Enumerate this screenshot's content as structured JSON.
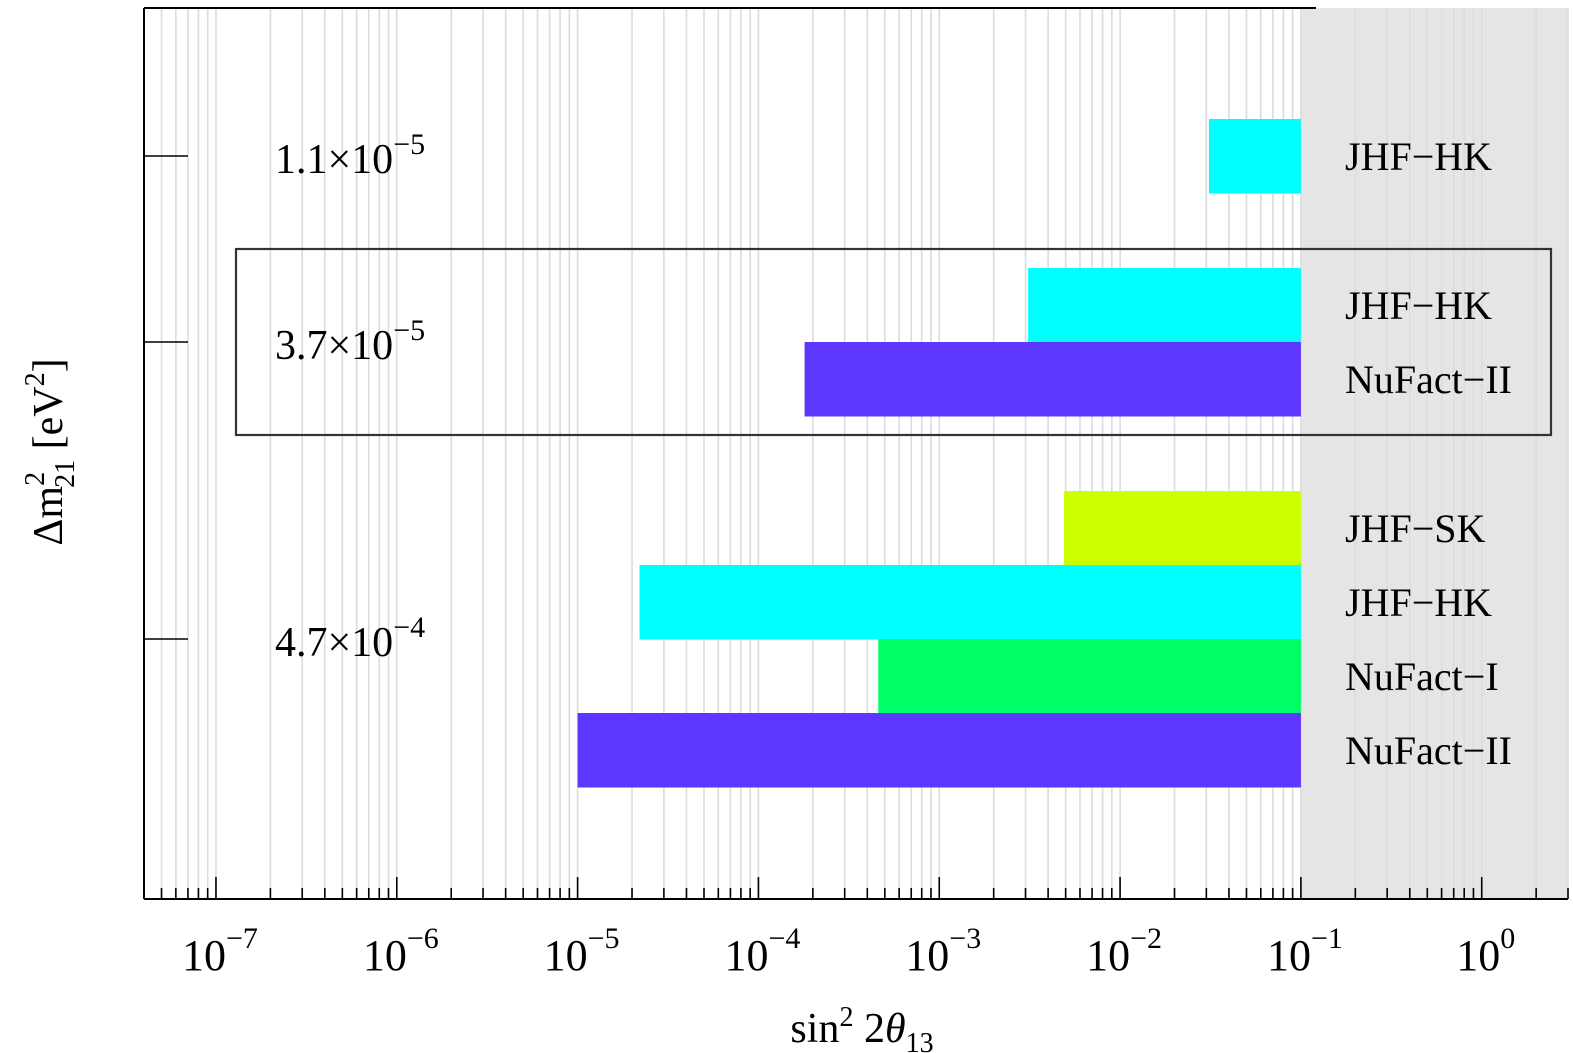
{
  "chart_data": {
    "type": "bar",
    "orientation": "horizontal",
    "x_scale": "log",
    "xlim": [
      4e-08,
      3
    ],
    "xlabel": {
      "main": "sin",
      "sup": "2",
      "mid": " 2",
      "theta": "θ",
      "sub": "13"
    },
    "ylabel": {
      "delta": "Δm",
      "sup": "2",
      "sub": "21",
      "unit_open": " [eV",
      "unit_sup": "2",
      "unit_close": "]"
    },
    "x_ticks": [
      {
        "value": 1e-07,
        "base": "10",
        "exp": "−7"
      },
      {
        "value": 1e-06,
        "base": "10",
        "exp": "−6"
      },
      {
        "value": 1e-05,
        "base": "10",
        "exp": "−5"
      },
      {
        "value": 0.0001,
        "base": "10",
        "exp": "−4"
      },
      {
        "value": 0.001,
        "base": "10",
        "exp": "−3"
      },
      {
        "value": 0.01,
        "base": "10",
        "exp": "−2"
      },
      {
        "value": 0.1,
        "base": "10",
        "exp": "−1"
      },
      {
        "value": 1,
        "base": "10",
        "exp": "0"
      }
    ],
    "excluded_region": {
      "from": 0.1,
      "color": "#e5e5e5"
    },
    "groups": [
      {
        "label_mant": "1.1×10",
        "label_exp": "−5",
        "highlighted": false,
        "bars": [
          {
            "name": "JHF−HK",
            "from": 0.031,
            "to": 0.1,
            "color": "#00ffff"
          }
        ]
      },
      {
        "label_mant": "3.7×10",
        "label_exp": "−5",
        "highlighted": true,
        "bars": [
          {
            "name": "JHF−HK",
            "from": 0.0031,
            "to": 0.1,
            "color": "#00ffff"
          },
          {
            "name": "NuFact−II",
            "from": 0.00018,
            "to": 0.1,
            "color": "#5d36ff"
          }
        ]
      },
      {
        "label_mant": "4.7×10",
        "label_exp": "−4",
        "highlighted": false,
        "bars": [
          {
            "name": "JHF−SK",
            "from": 0.0049,
            "to": 0.1,
            "color": "#ccff00"
          },
          {
            "name": "JHF−HK",
            "from": 2.2e-05,
            "to": 0.1,
            "color": "#00ffff"
          },
          {
            "name": "NuFact−I",
            "from": 0.00046,
            "to": 0.1,
            "color": "#00ff66"
          },
          {
            "name": "NuFact−II",
            "from": 1e-05,
            "to": 0.1,
            "color": "#5d36ff"
          }
        ]
      }
    ]
  }
}
